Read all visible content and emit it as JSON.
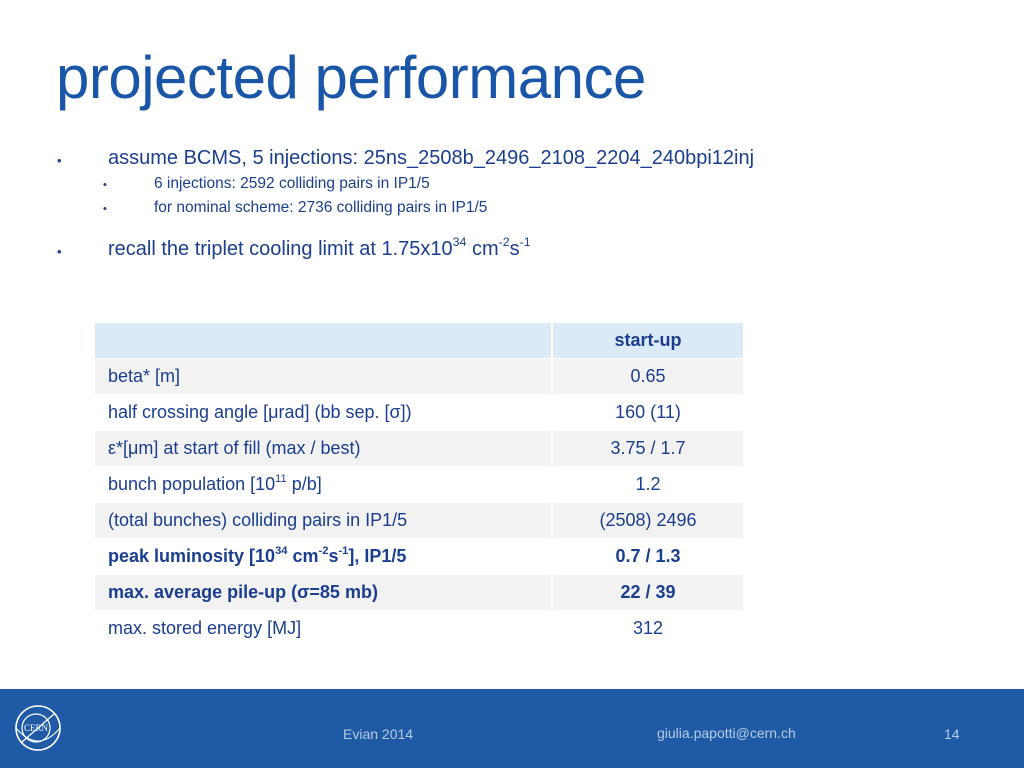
{
  "title": "projected performance",
  "bullets": {
    "b1": {
      "symbol": "•",
      "text": "assume BCMS, 5 injections: 25ns_2508b_2496_2108_2204_240bpi12inj"
    },
    "b1a": {
      "symbol": "•",
      "text": "6 injections: 2592 colliding pairs in IP1/5"
    },
    "b1b": {
      "symbol": "•",
      "text": "for nominal scheme: 2736 colliding pairs in IP1/5"
    },
    "b2": {
      "symbol": "•",
      "text_pre": "recall the triplet cooling limit at 1.75x10",
      "sup1": "34",
      "text_mid": " cm",
      "sup2": "-2",
      "text_s": "s",
      "sup3": "-1"
    }
  },
  "table": {
    "header": {
      "label": "",
      "value": "start-up"
    },
    "rows": [
      {
        "label": "beta* [m]",
        "value": "0.65"
      },
      {
        "label_pre": "half crossing angle [",
        "mu": "μ",
        "label_mid": "rad] (bb sep. [",
        "sigma": "σ",
        "label_post": "])",
        "value": "160 (11)"
      },
      {
        "eps": "ε",
        "label_pre": "*[",
        "mu": "μ",
        "label_post": "m] at start of fill (max / best)",
        "value": "3.75 / 1.7"
      },
      {
        "label_pre": "bunch population [10",
        "sup": "11",
        "label_post": " p/b]",
        "value": "1.2"
      },
      {
        "label": "(total bunches) colliding pairs in IP1/5",
        "value": "(2508) 2496"
      },
      {
        "label_pre": "peak luminosity [10",
        "sup1": "34",
        "label_mid": " cm",
        "sup2": "-2",
        "label_s": "s",
        "sup3": "-1",
        "label_post": "], IP1/5",
        "value": "0.7 / 1.3"
      },
      {
        "label_pre": "max. average pile-up (",
        "sigma": "σ",
        "label_post": "=85 mb)",
        "value": "22 / 39"
      },
      {
        "label": "max. stored energy [MJ]",
        "value": "312"
      }
    ]
  },
  "footer": {
    "logo_text": "CERN",
    "event": "Evian 2014",
    "email": "giulia.papotti@cern.ch",
    "page": "14"
  },
  "colors": {
    "title": "#1a56a8",
    "text": "#1a3f8f",
    "footer": "#1f5aa6",
    "header_cell": "#dbeaf7",
    "odd_row": "#f2f2f2"
  }
}
